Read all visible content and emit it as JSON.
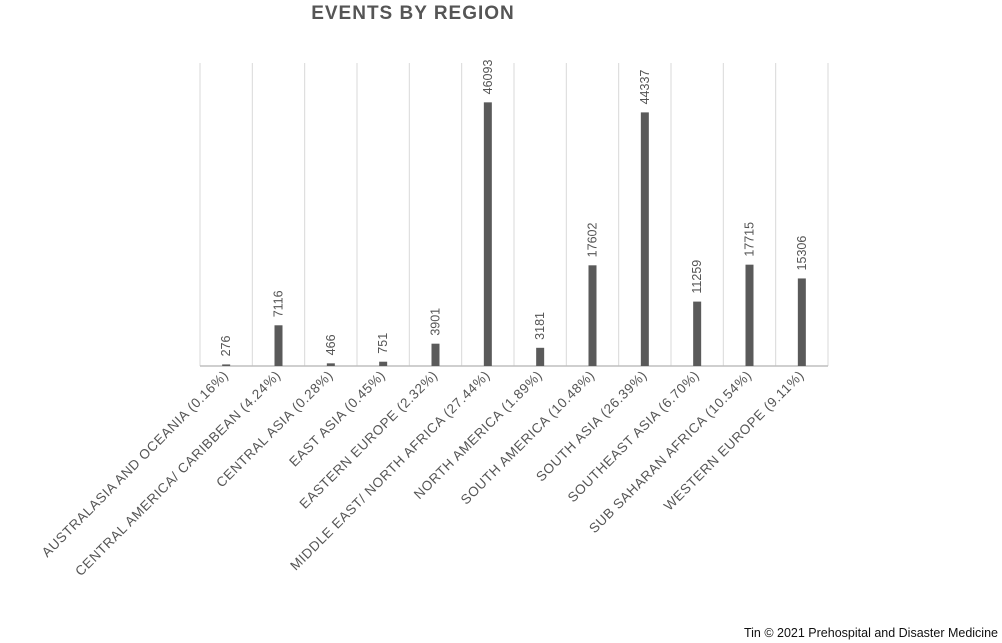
{
  "credit": "Tin © 2021 Prehospital and Disaster Medicine",
  "colors": {
    "bar": "#5a5a5a",
    "grid": "#d9d9d9",
    "axis": "#bfbfbf",
    "text": "#555555"
  },
  "chart_data": {
    "type": "bar",
    "title": "EVENTS BY REGION",
    "xlabel": "",
    "ylabel": "",
    "grid": "vertical lines between categories",
    "legend": "none",
    "ylim": [
      0,
      50000
    ],
    "categories": [
      "AUSTRALASIA AND OCEANIA (0.16%)",
      "CENTRAL AMERICA/ CARIBBEAN (4.24%)",
      "CENTRAL ASIA (0.28%)",
      "EAST ASIA (0.45%)",
      "EASTERN EUROPE (2.32%)",
      "MIDDLE EAST/ NORTH AFRICA (27.44%)",
      "NORTH AMERICA (1.89%)",
      "SOUTH AMERICA (10.48%)",
      "SOUTH ASIA (26.39%)",
      "SOUTHEAST ASIA (6.70%)",
      "SUB SAHARAN AFRICA (10.54%)",
      "WESTERN EUROPE (9.11%)"
    ],
    "values": [
      276,
      7116,
      466,
      751,
      3901,
      46093,
      3181,
      17602,
      44337,
      11259,
      17715,
      15306
    ],
    "data_labels": [
      "276",
      "7116",
      "466",
      "751",
      "3901",
      "46093",
      "3181",
      "17602",
      "44337",
      "11259",
      "17715",
      "15306"
    ]
  }
}
